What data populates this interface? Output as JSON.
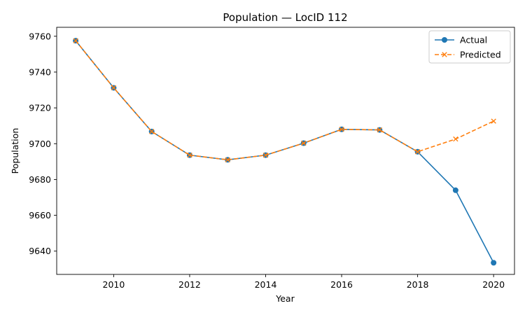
{
  "chart_data": {
    "type": "line",
    "title": "Population — LocID 112",
    "xlabel": "Year",
    "ylabel": "Population",
    "x": [
      2009,
      2010,
      2011,
      2012,
      2013,
      2014,
      2015,
      2016,
      2017,
      2018,
      2019,
      2020
    ],
    "xlim": [
      2008.5,
      2020.55
    ],
    "ylim": [
      9627,
      9765
    ],
    "xticks": [
      2010,
      2012,
      2014,
      2016,
      2018,
      2020
    ],
    "yticks": [
      9640,
      9660,
      9680,
      9700,
      9720,
      9740,
      9760
    ],
    "grid": false,
    "legend_position": "top-right",
    "series": [
      {
        "name": "Actual",
        "color": "#1f77b4",
        "line_style": "solid",
        "marker": "circle",
        "values": [
          9757.5,
          9731.2,
          9706.8,
          9693.6,
          9691.0,
          9693.6,
          9700.3,
          9708.0,
          9707.7,
          9695.5,
          9674.0,
          9633.5
        ]
      },
      {
        "name": "Predicted",
        "color": "#ff7f0e",
        "line_style": "dashed",
        "marker": "x",
        "values": [
          9757.5,
          9731.2,
          9706.8,
          9693.6,
          9691.0,
          9693.6,
          9700.3,
          9708.0,
          9707.7,
          9695.5,
          9702.6,
          9712.6
        ]
      }
    ]
  }
}
